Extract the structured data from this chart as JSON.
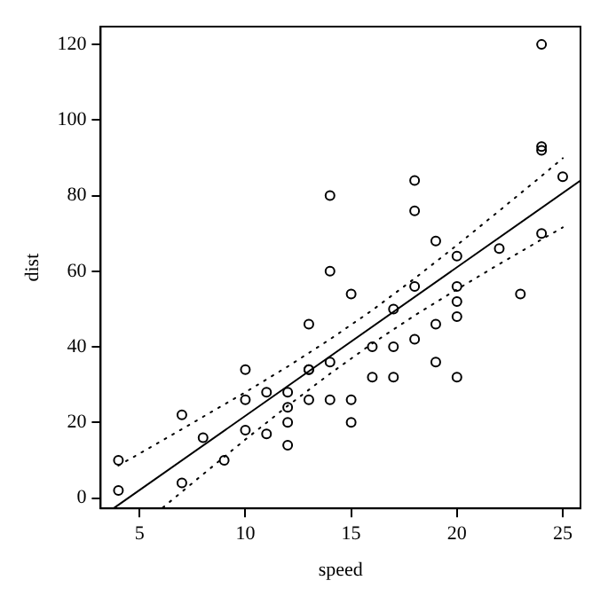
{
  "chart_data": {
    "type": "scatter",
    "xlabel": "speed",
    "ylabel": "dist",
    "xlim": [
      3.16,
      25.84
    ],
    "ylim": [
      -2.72,
      124.72
    ],
    "xticks": [
      5,
      10,
      15,
      20,
      25
    ],
    "yticks": [
      0,
      20,
      40,
      60,
      80,
      100,
      120
    ],
    "grid": false,
    "legend": false,
    "marker": "circle",
    "series": [
      {
        "type": "scatter",
        "color": "#000000",
        "x": [
          4,
          4,
          7,
          7,
          8,
          9,
          10,
          10,
          10,
          11,
          11,
          12,
          12,
          12,
          12,
          13,
          13,
          13,
          13,
          14,
          14,
          14,
          14,
          15,
          15,
          15,
          16,
          16,
          17,
          17,
          17,
          18,
          18,
          18,
          18,
          19,
          19,
          19,
          20,
          20,
          20,
          20,
          20,
          22,
          23,
          24,
          24,
          24,
          24,
          25
        ],
        "values": [
          2,
          10,
          4,
          22,
          16,
          10,
          18,
          26,
          34,
          17,
          28,
          14,
          20,
          24,
          28,
          26,
          34,
          34,
          46,
          26,
          36,
          60,
          80,
          20,
          26,
          54,
          32,
          40,
          32,
          40,
          50,
          42,
          56,
          76,
          84,
          36,
          46,
          68,
          32,
          48,
          52,
          56,
          64,
          66,
          54,
          70,
          92,
          93,
          120,
          85
        ]
      },
      {
        "type": "line",
        "color": "#000000",
        "line_style": "solid",
        "marker": "none",
        "x": [
          3.8,
          25.84
        ],
        "values": [
          -2.6,
          84.0
        ]
      },
      {
        "type": "line",
        "color": "#000000",
        "line_style": "dotted",
        "marker": "none",
        "x": [
          4,
          6,
          8,
          10,
          12,
          14,
          16,
          18,
          20,
          22,
          24,
          25
        ],
        "values": [
          8.6,
          15.0,
          21.5,
          28.0,
          34.8,
          42.0,
          49.7,
          58.1,
          66.9,
          76.0,
          85.2,
          89.9
        ]
      },
      {
        "type": "line",
        "color": "#000000",
        "line_style": "dotted",
        "marker": "none",
        "x": [
          6.1,
          8,
          10,
          12,
          14,
          16,
          18,
          20,
          22,
          24,
          25
        ],
        "values": [
          -2.5,
          6.3,
          15.5,
          24.4,
          32.9,
          40.9,
          48.3,
          55.2,
          61.9,
          68.4,
          71.6
        ]
      }
    ]
  }
}
